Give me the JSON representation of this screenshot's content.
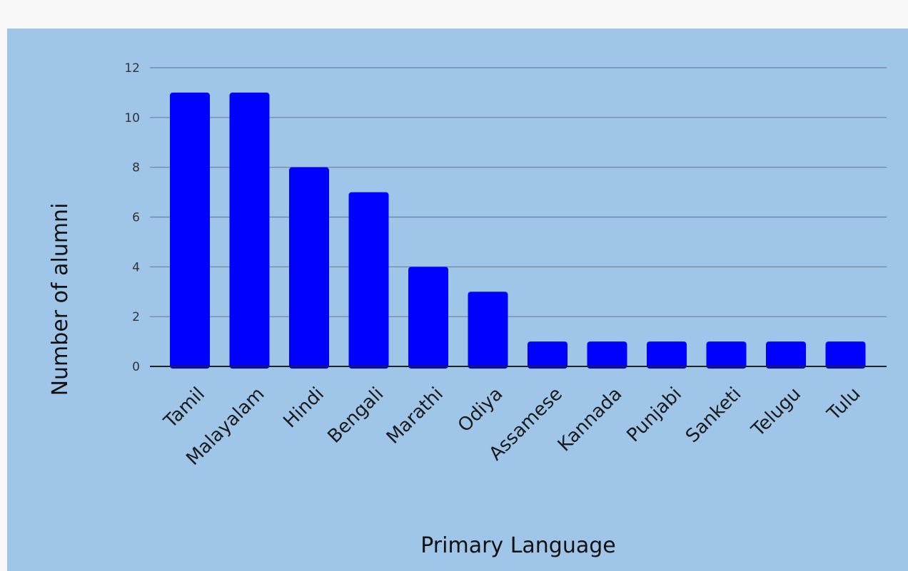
{
  "chart_data": {
    "type": "bar",
    "title": "",
    "xlabel": "Primary Language",
    "ylabel": "Number of alumni",
    "categories": [
      "Tamil",
      "Malayalam",
      "Hindi",
      "Bengali",
      "Marathi",
      "Odiya",
      "Assamese",
      "Kannada",
      "Punjabi",
      "Sanketi",
      "Telugu",
      "Tulu"
    ],
    "values": [
      11,
      11,
      8,
      7,
      4,
      3,
      1,
      1,
      1,
      1,
      1,
      1
    ],
    "ylim": [
      0,
      12
    ],
    "yticks": [
      0,
      2,
      4,
      6,
      8,
      10,
      12
    ],
    "grid": true,
    "legend": "none",
    "colors": {
      "bar": "#0000ff",
      "background": "#9fc5e8",
      "gridline": "#6d8199",
      "baseline": "#222222"
    }
  }
}
